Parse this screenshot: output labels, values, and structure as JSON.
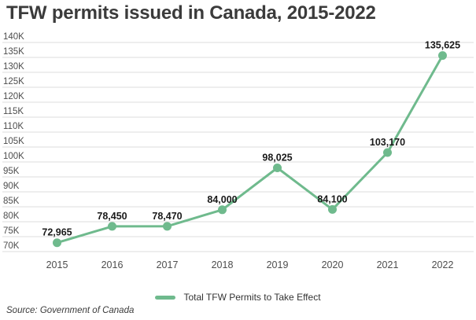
{
  "chart": {
    "title": "TFW permits issued in Canada, 2015-2022",
    "legend": "Total TFW Permits to Take Effect",
    "source": "Source: Government of Canada"
  },
  "chart_data": {
    "type": "line",
    "title": "TFW permits issued in Canada, 2015-2022",
    "categories": [
      "2015",
      "2016",
      "2017",
      "2018",
      "2019",
      "2020",
      "2021",
      "2022"
    ],
    "series": [
      {
        "name": "Total TFW Permits to Take Effect",
        "values": [
          72965,
          78450,
          78470,
          84000,
          98025,
          84100,
          103170,
          135625
        ],
        "labels": [
          "72,965",
          "78,450",
          "78,470",
          "84,000",
          "98,025",
          "84,100",
          "103,170",
          "135,625"
        ]
      }
    ],
    "xlabel": "",
    "ylabel": "",
    "ylim": [
      70000,
      140000
    ],
    "ytick_step": 5000,
    "y_tick_labels": [
      "70K",
      "75K",
      "80K",
      "85K",
      "90K",
      "95K",
      "100K",
      "105K",
      "110K",
      "115K",
      "120K",
      "125K",
      "130K",
      "135K",
      "140K"
    ],
    "grid": "horizontal",
    "legend_position": "bottom-center",
    "colors": {
      "line": "#6fba8d",
      "gridline": "#dcdcdc",
      "axis_text": "#4d4d4d",
      "data_label": "#1a1a1a",
      "title_text": "#3b3b3b"
    }
  }
}
